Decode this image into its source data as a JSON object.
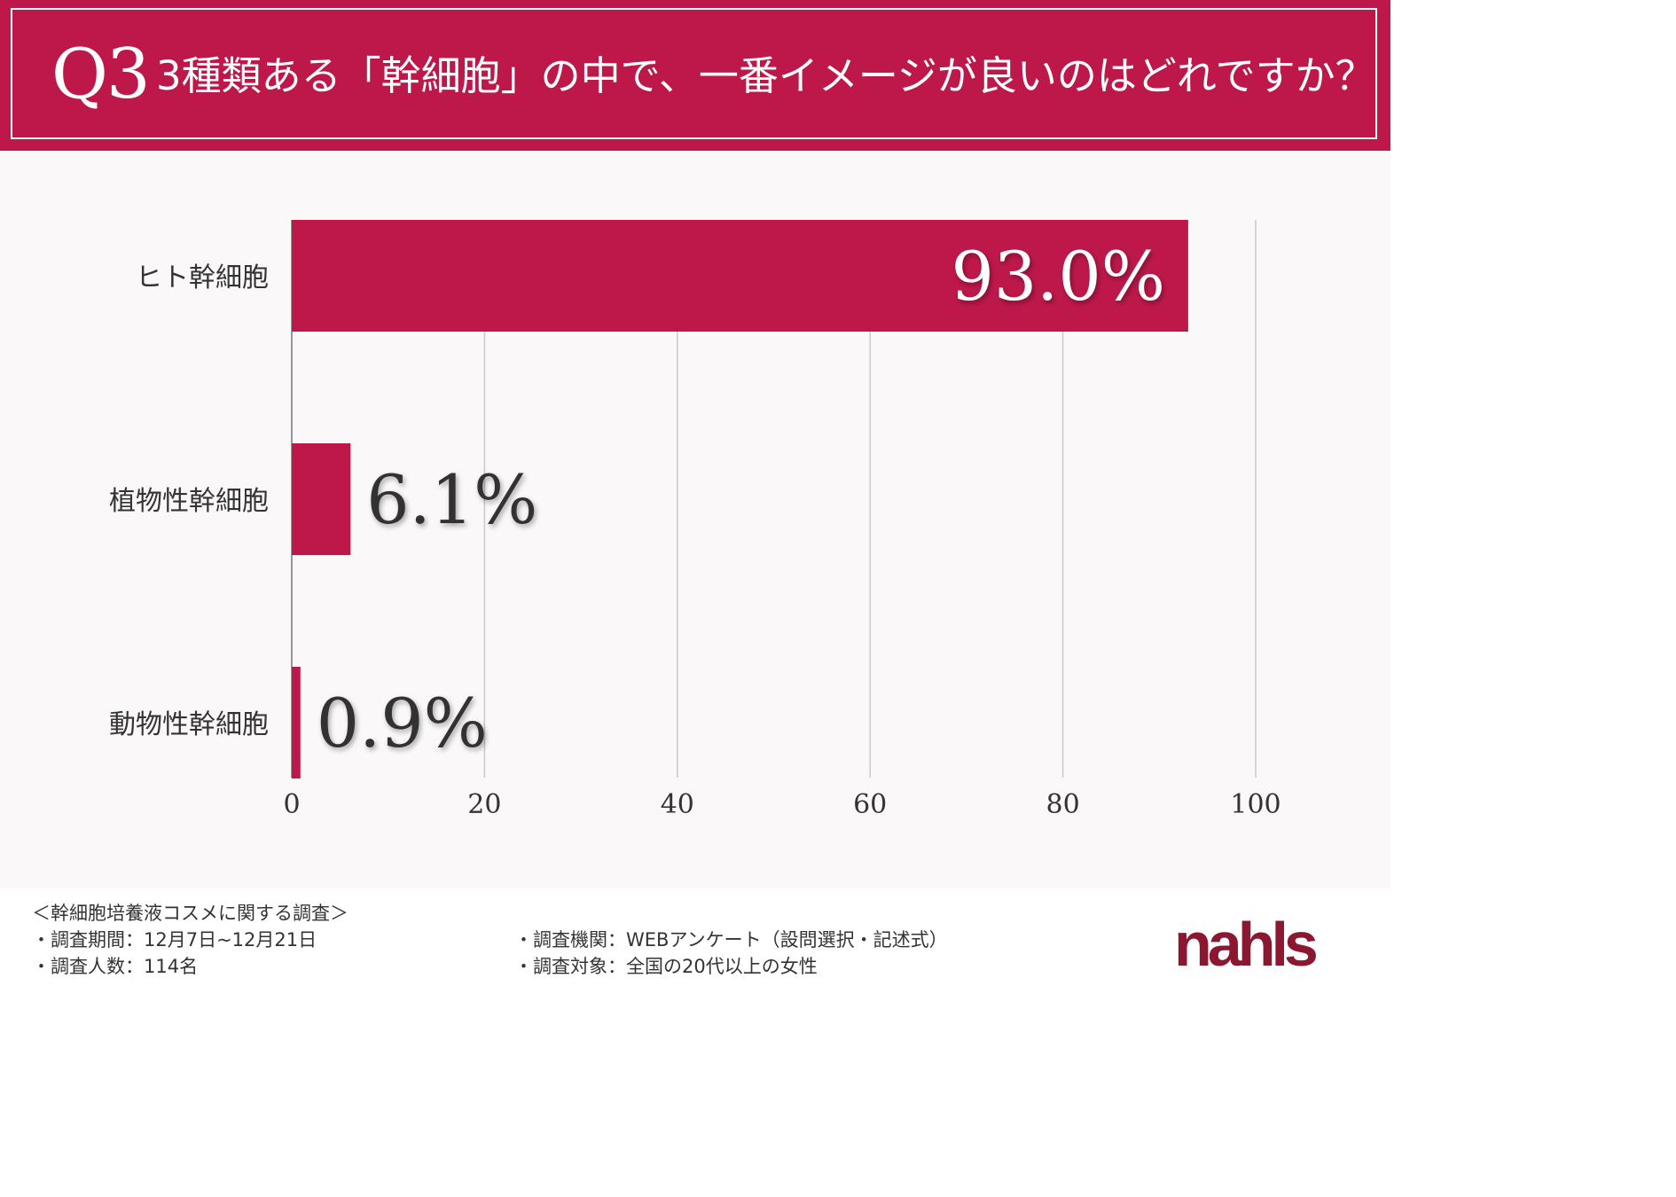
{
  "header": {
    "q_label": "Q3",
    "question": "3種類ある「幹細胞」の中で、一番イメージが良いのはどれですか？"
  },
  "colors": {
    "accent": "#be184b",
    "bar": "#be184b",
    "background": "#faf8f8",
    "logo": "#8c1730"
  },
  "chart_data": {
    "type": "bar",
    "orientation": "horizontal",
    "categories": [
      "ヒト幹細胞",
      "植物性幹細胞",
      "動物性幹細胞"
    ],
    "values": [
      93.0,
      6.1,
      0.9
    ],
    "value_labels": [
      "93.0%",
      "6.1%",
      "0.9%"
    ],
    "xlim": [
      0,
      100
    ],
    "xticks": [
      "0",
      "20",
      "40",
      "60",
      "80",
      "100"
    ],
    "grid": "vertical"
  },
  "footer": {
    "title": "＜幹細胞培養液コスメに関する調査＞",
    "period": "・調査期間：12月7日~12月21日",
    "count": "・調査人数：114名",
    "org": "・調査機関：WEBアンケート（設問選択・記述式）",
    "target": "・調査対象：全国の20代以上の女性",
    "logo": "nahls"
  }
}
